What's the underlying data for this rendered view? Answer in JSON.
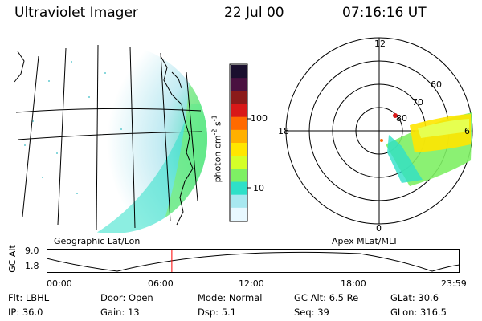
{
  "header": {
    "instrument": "Ultraviolet Imager",
    "date": "22 Jul 00",
    "time": "07:16:16 UT"
  },
  "geo_panel": {
    "label": "Geographic Lat/Lon"
  },
  "colorbar": {
    "unit_label": "photon cm",
    "unit_sup1": "-2",
    "unit_mid": "s",
    "unit_sup2": "-1",
    "tick_high": "100",
    "tick_low": "10",
    "scale": "log",
    "colors": [
      "#1a0f2e",
      "#4a1140",
      "#8b1a1a",
      "#d81818",
      "#ff6a00",
      "#ffb000",
      "#ffe600",
      "#d4ff28",
      "#7ef064",
      "#2ee0c8",
      "#a8e8f0",
      "#e8f8ff"
    ]
  },
  "polar_panel": {
    "label": "Apex MLat/MLT",
    "hour_labels": {
      "top": "12",
      "left": "18",
      "right": "6",
      "bottom": "0"
    },
    "lat_labels": [
      "60",
      "70",
      "80"
    ]
  },
  "altitude_plot": {
    "ylabel": "GC Alt",
    "yticks": [
      "9.0",
      "1.8"
    ],
    "xticks": [
      "00:00",
      "06:00",
      "12:00",
      "18:00",
      "23:59"
    ],
    "current_time_fraction": 0.3029,
    "marker_color": "#ff0000"
  },
  "status": {
    "row1": [
      {
        "label": "Flt:",
        "value": "LBHL"
      },
      {
        "label": "Door:",
        "value": "Open"
      },
      {
        "label": "Mode:",
        "value": "Normal"
      },
      {
        "label": "GC Alt:",
        "value": "6.5 Re"
      },
      {
        "label": "GLat:",
        "value": "30.6"
      }
    ],
    "row2": [
      {
        "label": "IP:",
        "value": "36.0"
      },
      {
        "label": "Gain:",
        "value": "13"
      },
      {
        "label": "Dsp:",
        "value": "5.1"
      },
      {
        "label": "Seq:",
        "value": "39"
      },
      {
        "label": "GLon:",
        "value": "316.5"
      }
    ]
  }
}
